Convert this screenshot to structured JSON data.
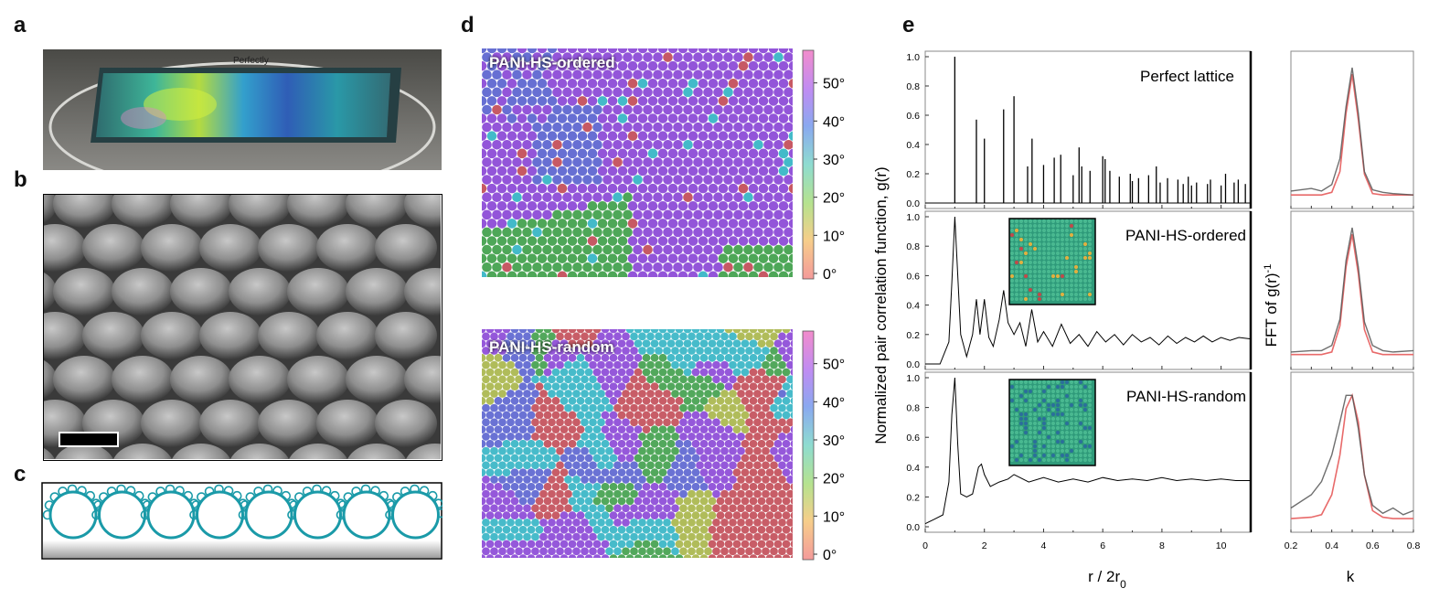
{
  "panel_labels": {
    "a": "a",
    "b": "b",
    "c": "c",
    "d": "d",
    "e": "e"
  },
  "panel_a": {
    "slide_handwriting": "Perfectly"
  },
  "panel_d": {
    "map_top_label": "PANI-HS-ordered",
    "map_bottom_label": "PANI-HS-random",
    "colorbar_ticks": [
      "0°",
      "10°",
      "20°",
      "30°",
      "40°",
      "50°"
    ],
    "colorbar_range_deg": [
      0,
      60
    ],
    "colors": {
      "ordered_main": "#8a46d6",
      "ordered_alt": "#5a63cf",
      "green": "#3f9f4a",
      "cyan": "#33b4c4",
      "yellow": "#a7b548",
      "red": "#c24b57"
    }
  },
  "chart_data": [
    {
      "type": "line",
      "title": "Perfect lattice",
      "ylabel": "Normalized  pair correlation function, g(r)",
      "xlabel": "r / 2r",
      "xlabel_subscript": "0",
      "xlim": [
        0,
        11
      ],
      "ylim": [
        0,
        1.0
      ],
      "x_ticks": [
        "0",
        "2",
        "4",
        "6",
        "8",
        "10"
      ],
      "y_ticks": [
        "0.0",
        "0.2",
        "0.4",
        "0.6",
        "0.8",
        "1.0"
      ],
      "series": [
        {
          "name": "Perfect lattice",
          "peaks_x": [
            1.0,
            1.73,
            2.0,
            2.65,
            3.0,
            3.46,
            3.61,
            4.0,
            4.36,
            4.58,
            5.0,
            5.2,
            5.29,
            5.57,
            6.0,
            6.08,
            6.24,
            6.56,
            6.93,
            7.0,
            7.21,
            7.55,
            7.81,
            7.94,
            8.19,
            8.54,
            8.72,
            8.89,
            9.0,
            9.17,
            9.54,
            9.64,
            10.0,
            10.15,
            10.44,
            10.58,
            10.82
          ],
          "peaks_y": [
            1.0,
            0.57,
            0.44,
            0.64,
            0.73,
            0.25,
            0.44,
            0.26,
            0.31,
            0.33,
            0.19,
            0.38,
            0.25,
            0.22,
            0.32,
            0.3,
            0.22,
            0.18,
            0.2,
            0.15,
            0.17,
            0.19,
            0.25,
            0.14,
            0.17,
            0.16,
            0.13,
            0.18,
            0.12,
            0.14,
            0.13,
            0.16,
            0.12,
            0.2,
            0.14,
            0.16,
            0.13
          ]
        }
      ]
    },
    {
      "type": "line",
      "title": "PANI-HS-ordered",
      "xlim": [
        0,
        11
      ],
      "ylim": [
        0,
        1.0
      ],
      "y_ticks": [
        "0.0",
        "0.2",
        "0.4",
        "0.6",
        "0.8",
        "1.0"
      ],
      "series": [
        {
          "name": "PANI-HS-ordered",
          "x": [
            0,
            0.5,
            0.8,
            0.9,
            1.0,
            1.1,
            1.2,
            1.4,
            1.6,
            1.73,
            1.85,
            2.0,
            2.15,
            2.3,
            2.5,
            2.65,
            2.8,
            3.0,
            3.2,
            3.4,
            3.6,
            3.8,
            4.0,
            4.3,
            4.6,
            4.9,
            5.2,
            5.5,
            5.8,
            6.1,
            6.4,
            6.7,
            7.0,
            7.3,
            7.6,
            7.9,
            8.2,
            8.5,
            8.8,
            9.1,
            9.4,
            9.7,
            10.0,
            10.3,
            10.6,
            11.0
          ],
          "y": [
            0,
            0.0,
            0.15,
            0.55,
            1.0,
            0.6,
            0.2,
            0.05,
            0.2,
            0.44,
            0.2,
            0.44,
            0.18,
            0.12,
            0.3,
            0.5,
            0.28,
            0.2,
            0.28,
            0.12,
            0.37,
            0.15,
            0.22,
            0.12,
            0.27,
            0.14,
            0.2,
            0.12,
            0.22,
            0.15,
            0.2,
            0.13,
            0.2,
            0.15,
            0.18,
            0.13,
            0.19,
            0.14,
            0.18,
            0.15,
            0.19,
            0.15,
            0.18,
            0.16,
            0.18,
            0.17
          ]
        }
      ]
    },
    {
      "type": "line",
      "title": "PANI-HS-random",
      "xlim": [
        0,
        11
      ],
      "ylim": [
        0,
        1.0
      ],
      "y_ticks": [
        "0.0",
        "0.2",
        "0.4",
        "0.6",
        "0.8",
        "1.0"
      ],
      "series": [
        {
          "name": "PANI-HS-random",
          "x": [
            0,
            0.3,
            0.6,
            0.8,
            0.9,
            1.0,
            1.1,
            1.2,
            1.4,
            1.6,
            1.8,
            1.9,
            2.0,
            2.2,
            2.5,
            2.8,
            3.0,
            3.5,
            4.0,
            4.5,
            5.0,
            5.5,
            6.0,
            6.5,
            7.0,
            7.5,
            8.0,
            8.5,
            9.0,
            9.5,
            10.0,
            10.5,
            11.0
          ],
          "y": [
            0.02,
            0.05,
            0.08,
            0.3,
            0.75,
            1.0,
            0.55,
            0.22,
            0.2,
            0.22,
            0.4,
            0.42,
            0.35,
            0.27,
            0.3,
            0.32,
            0.35,
            0.3,
            0.33,
            0.3,
            0.32,
            0.3,
            0.33,
            0.31,
            0.32,
            0.31,
            0.33,
            0.31,
            0.32,
            0.31,
            0.32,
            0.31,
            0.31
          ]
        }
      ]
    },
    {
      "type": "line",
      "ylabel": "FFT of g(r)",
      "ylabel_superscript": "-1",
      "xlabel": "k",
      "xlim": [
        0.2,
        0.8
      ],
      "x_ticks": [
        "0.2",
        "0.4",
        "0.6",
        "0.8"
      ],
      "subplots": [
        {
          "name": "perfect",
          "x": [
            0.2,
            0.3,
            0.35,
            0.4,
            0.44,
            0.47,
            0.5,
            0.53,
            0.56,
            0.6,
            0.65,
            0.7,
            0.8
          ],
          "grey": [
            0.05,
            0.07,
            0.05,
            0.1,
            0.3,
            0.7,
            1.0,
            0.65,
            0.2,
            0.06,
            0.04,
            0.03,
            0.02
          ],
          "red": [
            0.02,
            0.02,
            0.02,
            0.04,
            0.2,
            0.65,
            0.95,
            0.6,
            0.18,
            0.03,
            0.02,
            0.02,
            0.02
          ]
        },
        {
          "name": "ordered",
          "x": [
            0.2,
            0.3,
            0.35,
            0.4,
            0.44,
            0.47,
            0.5,
            0.53,
            0.56,
            0.6,
            0.65,
            0.7,
            0.8
          ],
          "grey": [
            0.05,
            0.06,
            0.06,
            0.1,
            0.3,
            0.75,
            1.0,
            0.7,
            0.28,
            0.1,
            0.06,
            0.05,
            0.06
          ],
          "red": [
            0.03,
            0.03,
            0.03,
            0.05,
            0.25,
            0.7,
            0.95,
            0.65,
            0.22,
            0.05,
            0.03,
            0.03,
            0.03
          ]
        },
        {
          "name": "random",
          "x": [
            0.2,
            0.3,
            0.35,
            0.4,
            0.44,
            0.47,
            0.5,
            0.53,
            0.56,
            0.6,
            0.65,
            0.7,
            0.75,
            0.8
          ],
          "grey": [
            0.1,
            0.2,
            0.3,
            0.5,
            0.75,
            0.95,
            0.95,
            0.7,
            0.35,
            0.12,
            0.06,
            0.1,
            0.05,
            0.08
          ],
          "red": [
            0.02,
            0.03,
            0.05,
            0.2,
            0.5,
            0.85,
            0.95,
            0.75,
            0.35,
            0.08,
            0.03,
            0.02,
            0.02,
            0.02
          ]
        }
      ]
    }
  ]
}
